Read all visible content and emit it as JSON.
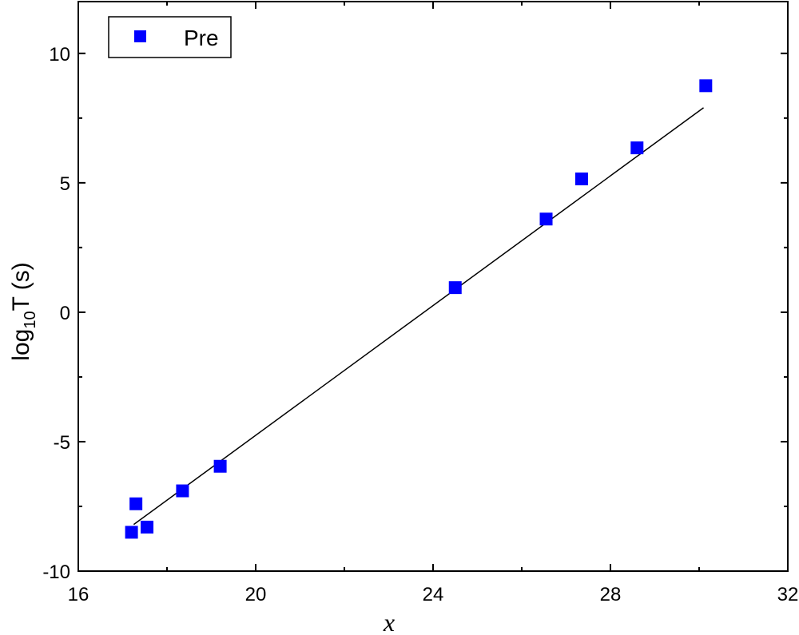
{
  "chart_data": {
    "type": "scatter",
    "title": "",
    "xlabel": "x",
    "ylabel_main": "log",
    "ylabel_sub": "10",
    "ylabel_rest": "T (s)",
    "xlim": [
      16,
      32
    ],
    "ylim": [
      -10,
      12
    ],
    "xticks": [
      16,
      20,
      24,
      28,
      32
    ],
    "xticks_minor": [
      18,
      22,
      26,
      30
    ],
    "yticks": [
      -10,
      -5,
      0,
      5,
      10
    ],
    "yticks_minor": [
      -7.5,
      -2.5,
      2.5,
      7.5
    ],
    "grid": false,
    "legend_position": "top-left",
    "series": [
      {
        "name": "Pre",
        "color": "#0000ff",
        "marker": "square",
        "x": [
          17.2,
          17.3,
          17.55,
          18.35,
          19.2,
          24.5,
          26.55,
          27.35,
          28.6,
          30.15
        ],
        "y": [
          -8.5,
          -7.4,
          -8.3,
          -6.9,
          -5.95,
          0.95,
          3.6,
          5.15,
          6.35,
          8.75
        ]
      }
    ],
    "fit_line": {
      "color": "#000000",
      "x": [
        17.25,
        30.1
      ],
      "y": [
        -8.2,
        7.9
      ]
    }
  }
}
